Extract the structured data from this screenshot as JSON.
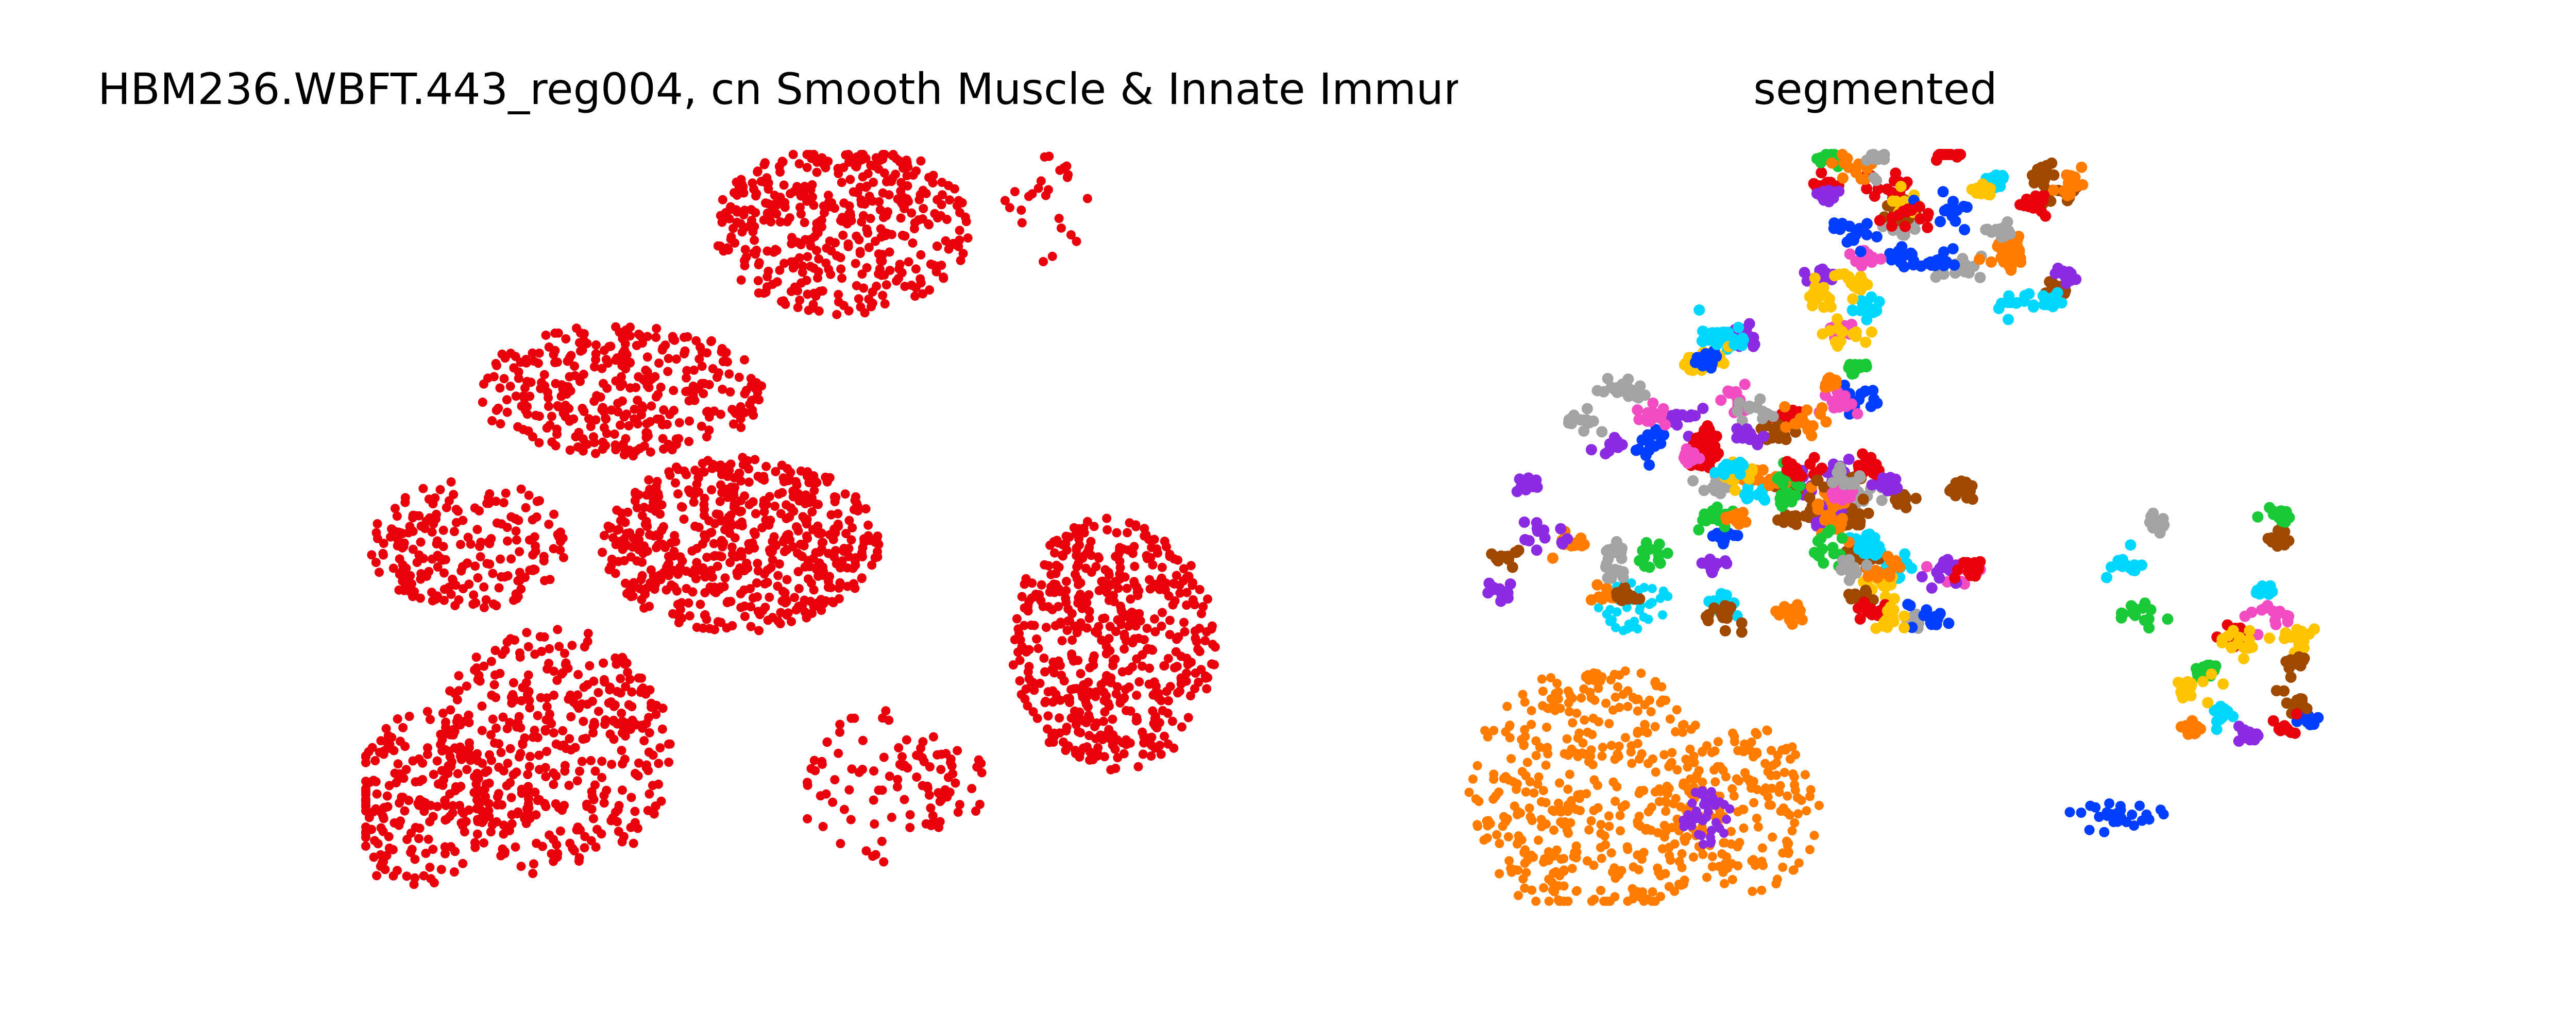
{
  "figure": {
    "left_title": "HBM236.WBFT.443_reg004, cn Smooth Muscle & Innate Immur",
    "right_title": "segmented"
  },
  "chart_data": [
    {
      "type": "scatter",
      "title": "HBM236.WBFT.443_reg004, cn Smooth Muscle & Innate Immur",
      "axes_visible": false,
      "grid": false,
      "point_color": "#e8000b",
      "xlim": [
        0,
        1000
      ],
      "ylim": [
        0,
        900
      ],
      "regions": [
        {
          "cx": 560,
          "cy": 90,
          "rx": 150,
          "ry": 105,
          "n": 420
        },
        {
          "cx": 300,
          "cy": 285,
          "rx": 170,
          "ry": 80,
          "n": 330
        },
        {
          "cx": 440,
          "cy": 470,
          "rx": 165,
          "ry": 105,
          "n": 560
        },
        {
          "cx": 120,
          "cy": 470,
          "rx": 115,
          "ry": 80,
          "n": 200
        },
        {
          "cx": 880,
          "cy": 590,
          "rx": 120,
          "ry": 155,
          "n": 520
        },
        {
          "cx": 220,
          "cy": 720,
          "rx": 140,
          "ry": 150,
          "n": 420
        },
        {
          "cx": 60,
          "cy": 780,
          "rx": 85,
          "ry": 110,
          "n": 170
        },
        {
          "cx": 600,
          "cy": 760,
          "rx": 95,
          "ry": 95,
          "n": 70
        },
        {
          "cx": 680,
          "cy": 760,
          "rx": 60,
          "ry": 50,
          "n": 35
        },
        {
          "cx": 800,
          "cy": 65,
          "rx": 50,
          "ry": 65,
          "n": 25
        }
      ]
    },
    {
      "type": "scatter",
      "title": "segmented",
      "axes_visible": false,
      "grid": false,
      "xlim": [
        0,
        1000
      ],
      "ylim": [
        0,
        900
      ],
      "palette": [
        "#e8000b",
        "#1ac938",
        "#023eff",
        "#ff7c00",
        "#8b2be2",
        "#9f4800",
        "#f14cc1",
        "#a3a3a3",
        "#ffc400",
        "#00d7ff"
      ],
      "big_segments": [
        {
          "cx": 150,
          "cy": 770,
          "rx": 150,
          "ry": 155,
          "n": 420,
          "color": "#ff7c00"
        },
        {
          "cx": 330,
          "cy": 790,
          "rx": 85,
          "ry": 100,
          "n": 160,
          "color": "#ff7c00"
        },
        {
          "cx": 280,
          "cy": 800,
          "rx": 30,
          "ry": 35,
          "n": 40,
          "color": "#8b2be2"
        },
        {
          "cx": 195,
          "cy": 545,
          "rx": 45,
          "ry": 30,
          "n": 40,
          "color": "#00d7ff"
        }
      ],
      "cluster_counts": {
        "small_clusters": 140,
        "points_per_cluster": 14
      }
    }
  ]
}
